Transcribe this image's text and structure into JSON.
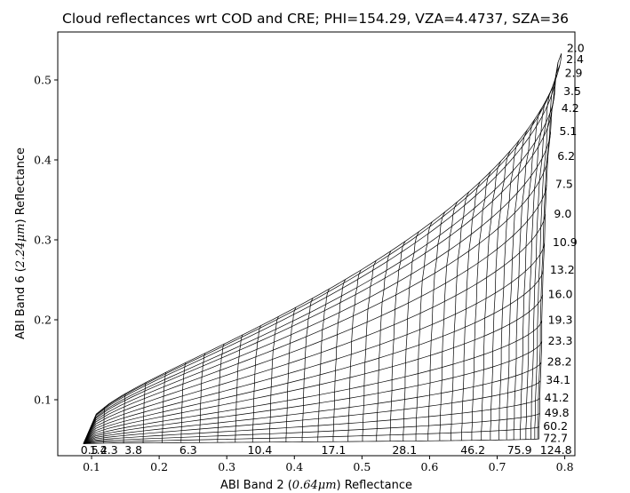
{
  "chart_data": {
    "type": "line",
    "title": "Cloud reflectances wrt COD and CRE; PHI=154.29, VZA=4.4737, SZA=36",
    "xlabel_prefix": "ABI Band 2 (",
    "xlabel_math": "0.64μm",
    "xlabel_suffix": ") Reflectance",
    "ylabel_prefix": "ABI Band 6 (",
    "ylabel_math": "2.24μm",
    "ylabel_suffix": ") Reflectance",
    "xlim": [
      0.05,
      0.815
    ],
    "ylim": [
      0.03,
      0.56
    ],
    "xticks": [
      "0.1",
      "0.2",
      "0.3",
      "0.4",
      "0.5",
      "0.6",
      "0.7",
      "0.8"
    ],
    "yticks": [
      "0.1",
      "0.2",
      "0.3",
      "0.4",
      "0.5"
    ],
    "grid": false,
    "cod_labels": [
      "0.5",
      "1.4",
      "2.3",
      "3.8",
      "6.3",
      "10.4",
      "17.1",
      "28.1",
      "46.2",
      "75.9",
      "124.8"
    ],
    "cod_label_x": [
      0.097,
      0.11,
      0.126,
      0.162,
      0.243,
      0.349,
      0.458,
      0.563,
      0.664,
      0.733,
      0.787
    ],
    "cod_label_y": 0.042,
    "cre_labels": [
      "2.0",
      "2.4",
      "2.9",
      "3.5",
      "4.2",
      "5.1",
      "6.2",
      "7.5",
      "9.0",
      "10.9",
      "13.2",
      "16.0",
      "19.3",
      "23.3",
      "28.2",
      "34.1",
      "41.2",
      "49.8",
      "60.2",
      "72.7"
    ],
    "cre_label_y": [
      0.54,
      0.526,
      0.509,
      0.486,
      0.465,
      0.436,
      0.405,
      0.37,
      0.333,
      0.297,
      0.263,
      0.232,
      0.2,
      0.174,
      0.148,
      0.125,
      0.103,
      0.084,
      0.067,
      0.052
    ],
    "cre_label_x": [
      0.803,
      0.802,
      0.8,
      0.798,
      0.795,
      0.792,
      0.789,
      0.786,
      0.784,
      0.782,
      0.778,
      0.775,
      0.775,
      0.775,
      0.774,
      0.772,
      0.77,
      0.77,
      0.768,
      0.768
    ],
    "grid_model": {
      "n_cre": 20,
      "n_cod": 36,
      "x_min": 0.088,
      "x_max": [
        0.795,
        0.79,
        0.787,
        0.785,
        0.781,
        0.779,
        0.775,
        0.773,
        0.771,
        0.77,
        0.768,
        0.767,
        0.766,
        0.766,
        0.765,
        0.764,
        0.763,
        0.763,
        0.762,
        0.762
      ],
      "y_max": [
        0.533,
        0.522,
        0.507,
        0.484,
        0.464,
        0.435,
        0.404,
        0.369,
        0.332,
        0.296,
        0.262,
        0.231,
        0.199,
        0.173,
        0.147,
        0.124,
        0.102,
        0.083,
        0.066,
        0.051
      ],
      "y_base": 0.045,
      "x_shape_exp": 0.62,
      "y_shape_exp": 0.38
    }
  }
}
